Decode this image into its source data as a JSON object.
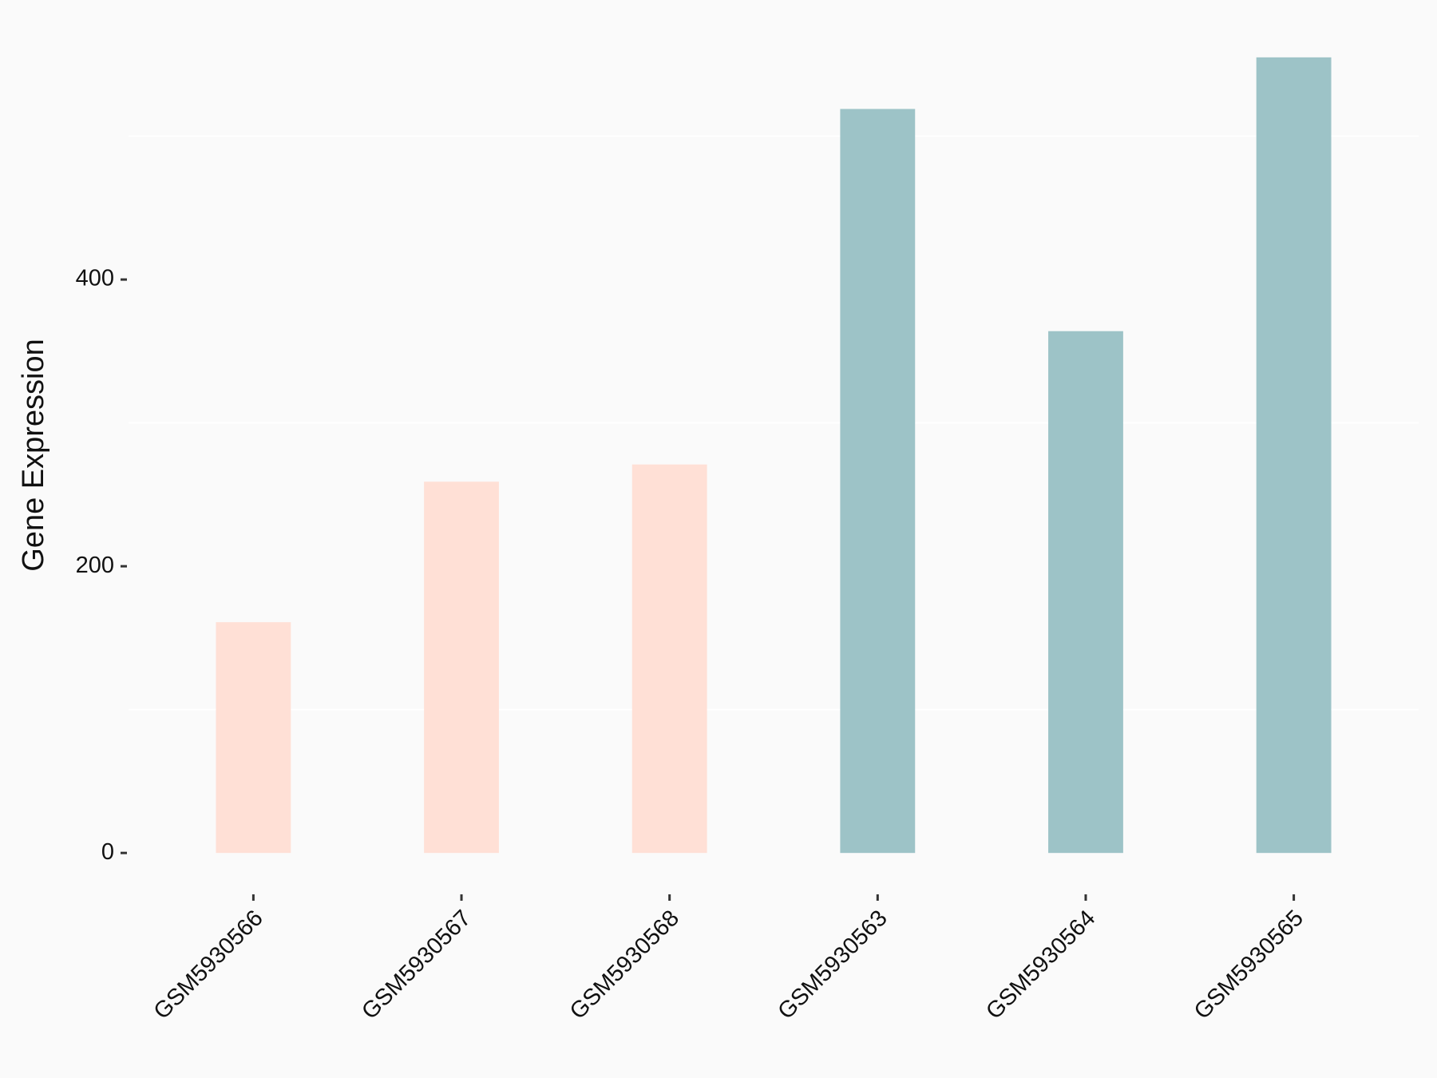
{
  "chart_data": {
    "type": "bar",
    "y_label": "Gene Expression",
    "categories": [
      "GSM5930566",
      "GSM5930567",
      "GSM5930568",
      "GSM5930563",
      "GSM5930564",
      "GSM5930565"
    ],
    "values": [
      161,
      259,
      271,
      519,
      364,
      555
    ],
    "colors": [
      "#FFE0D6",
      "#FFE0D6",
      "#FFE0D6",
      "#9DC3C7",
      "#9DC3C7",
      "#9DC3C7"
    ],
    "ylim": [
      -27.75,
      582.75
    ],
    "yticks": [
      0,
      200,
      400
    ],
    "minor_grid": [
      100,
      300,
      500
    ],
    "grid": true
  }
}
